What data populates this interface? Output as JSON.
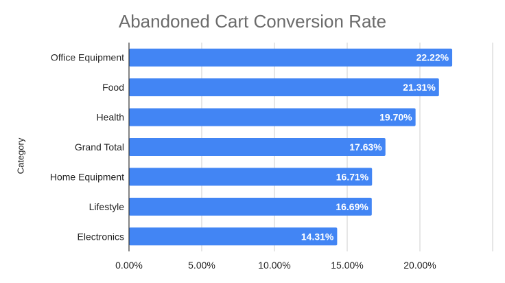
{
  "chart_data": {
    "type": "bar",
    "orientation": "horizontal",
    "title": "Abandoned Cart Conversion Rate",
    "xlabel": "",
    "ylabel": "Category",
    "categories": [
      "Office Equipment",
      "Food",
      "Health",
      "Grand Total",
      "Home Equipment",
      "Lifestyle",
      "Electronics"
    ],
    "values": [
      22.22,
      21.31,
      19.7,
      17.63,
      16.71,
      16.69,
      14.31
    ],
    "value_labels": [
      "22.22%",
      "21.31%",
      "19.70%",
      "17.63%",
      "16.71%",
      "16.69%",
      "14.31%"
    ],
    "xlim": [
      0,
      25
    ],
    "xticks": [
      0,
      5,
      10,
      15,
      20
    ],
    "xtick_labels": [
      "0.00%",
      "5.00%",
      "10.00%",
      "15.00%",
      "20.00%"
    ],
    "grid": true,
    "legend": "none",
    "bar_color": "#4285f4",
    "grid_color": "#cccccc"
  }
}
